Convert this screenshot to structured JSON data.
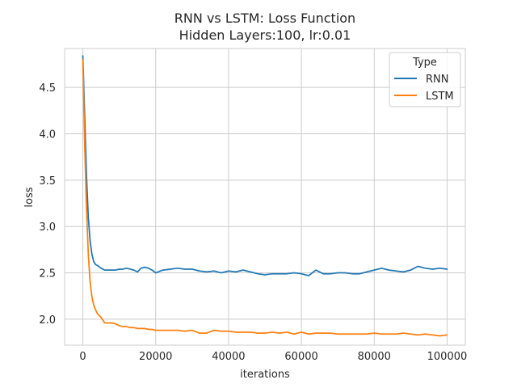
{
  "chart_data": {
    "type": "line",
    "title": "RNN vs LSTM: Loss Function",
    "subtitle": "Hidden Layers:100, lr:0.01",
    "xlabel": "iterations",
    "ylabel": "loss",
    "xlim": [
      -5000,
      105000
    ],
    "ylim": [
      1.72,
      4.92
    ],
    "xticks": [
      0,
      20000,
      40000,
      60000,
      80000,
      100000
    ],
    "xtick_labels": [
      "0",
      "20000",
      "40000",
      "60000",
      "80000",
      "100000"
    ],
    "yticks": [
      2.0,
      2.5,
      3.0,
      3.5,
      4.0,
      4.5
    ],
    "ytick_labels": [
      "2.0",
      "2.5",
      "3.0",
      "3.5",
      "4.0",
      "4.5"
    ],
    "grid": true,
    "legend": {
      "title": "Type",
      "position": "top-right"
    },
    "series": [
      {
        "name": "RNN",
        "color": "#1f77b4",
        "x": [
          0,
          500,
          1000,
          1500,
          2000,
          2500,
          3000,
          3500,
          4000,
          5000,
          6000,
          7000,
          8000,
          9000,
          10000,
          11000,
          12000,
          13000,
          14000,
          15000,
          16000,
          17000,
          18000,
          19000,
          20000,
          22000,
          24000,
          26000,
          28000,
          30000,
          32000,
          34000,
          36000,
          38000,
          40000,
          42000,
          44000,
          46000,
          48000,
          50000,
          52000,
          54000,
          56000,
          58000,
          60000,
          62000,
          64000,
          66000,
          68000,
          70000,
          72000,
          74000,
          76000,
          78000,
          80000,
          82000,
          84000,
          86000,
          88000,
          90000,
          92000,
          94000,
          96000,
          98000,
          100000
        ],
        "y": [
          4.84,
          4.2,
          3.55,
          3.1,
          2.84,
          2.7,
          2.62,
          2.59,
          2.58,
          2.55,
          2.53,
          2.53,
          2.53,
          2.53,
          2.54,
          2.54,
          2.55,
          2.54,
          2.53,
          2.51,
          2.55,
          2.56,
          2.55,
          2.53,
          2.5,
          2.53,
          2.54,
          2.55,
          2.54,
          2.54,
          2.52,
          2.51,
          2.52,
          2.5,
          2.52,
          2.51,
          2.53,
          2.51,
          2.49,
          2.48,
          2.49,
          2.49,
          2.49,
          2.5,
          2.49,
          2.47,
          2.53,
          2.49,
          2.49,
          2.5,
          2.5,
          2.49,
          2.49,
          2.51,
          2.53,
          2.55,
          2.53,
          2.52,
          2.51,
          2.53,
          2.57,
          2.55,
          2.54,
          2.55,
          2.54
        ]
      },
      {
        "name": "LSTM",
        "color": "#ff7f0e",
        "x": [
          0,
          500,
          1000,
          1500,
          2000,
          2500,
          3000,
          3500,
          4000,
          5000,
          6000,
          7000,
          8000,
          9000,
          10000,
          11000,
          12000,
          13000,
          14000,
          15000,
          16000,
          17000,
          18000,
          19000,
          20000,
          22000,
          24000,
          26000,
          28000,
          30000,
          32000,
          34000,
          36000,
          38000,
          40000,
          42000,
          44000,
          46000,
          48000,
          50000,
          52000,
          54000,
          56000,
          58000,
          60000,
          62000,
          64000,
          66000,
          68000,
          70000,
          72000,
          74000,
          76000,
          78000,
          80000,
          82000,
          84000,
          86000,
          88000,
          90000,
          92000,
          94000,
          96000,
          98000,
          100000
        ],
        "y": [
          4.8,
          3.9,
          3.2,
          2.7,
          2.4,
          2.24,
          2.15,
          2.1,
          2.06,
          2.02,
          1.96,
          1.96,
          1.96,
          1.95,
          1.93,
          1.92,
          1.92,
          1.91,
          1.91,
          1.9,
          1.9,
          1.9,
          1.89,
          1.89,
          1.88,
          1.88,
          1.88,
          1.88,
          1.87,
          1.88,
          1.85,
          1.85,
          1.88,
          1.87,
          1.87,
          1.86,
          1.86,
          1.86,
          1.85,
          1.85,
          1.86,
          1.85,
          1.86,
          1.84,
          1.86,
          1.84,
          1.85,
          1.85,
          1.85,
          1.84,
          1.84,
          1.84,
          1.84,
          1.84,
          1.85,
          1.84,
          1.84,
          1.84,
          1.85,
          1.84,
          1.83,
          1.84,
          1.83,
          1.82,
          1.83
        ]
      }
    ]
  }
}
